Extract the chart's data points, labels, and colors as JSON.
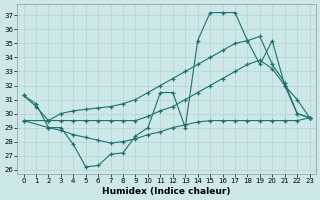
{
  "bg_color": "#cce8e8",
  "grid_color": "#b8d0d0",
  "line_color": "#1e7070",
  "xlim": [
    -0.5,
    23.5
  ],
  "ylim": [
    25.7,
    37.8
  ],
  "xticks": [
    0,
    1,
    2,
    3,
    4,
    5,
    6,
    7,
    8,
    9,
    10,
    11,
    12,
    13,
    14,
    15,
    16,
    17,
    18,
    19,
    20,
    21,
    22,
    23
  ],
  "yticks": [
    26,
    27,
    28,
    29,
    30,
    31,
    32,
    33,
    34,
    35,
    36,
    37
  ],
  "xlabel": "Humidex (Indice chaleur)",
  "lines": [
    {
      "x": [
        0,
        1,
        2,
        3,
        4,
        5,
        6,
        7,
        8,
        9,
        10,
        11,
        12,
        13,
        14,
        15,
        16,
        17,
        18,
        19,
        20,
        21,
        22,
        23
      ],
      "y": [
        31.3,
        30.7,
        29.0,
        29.0,
        27.8,
        26.2,
        26.3,
        27.1,
        27.2,
        28.4,
        29.0,
        31.5,
        31.5,
        29.0,
        35.2,
        37.2,
        37.2,
        37.2,
        35.2,
        33.5,
        35.2,
        32.0,
        31.0,
        29.7
      ]
    },
    {
      "x": [
        0,
        1,
        2,
        3,
        4,
        5,
        6,
        7,
        8,
        9,
        10,
        11,
        12,
        13,
        14,
        15,
        16,
        17,
        18,
        19,
        20,
        21,
        22,
        23
      ],
      "y": [
        31.3,
        30.5,
        29.5,
        30.0,
        30.2,
        30.3,
        30.4,
        30.5,
        30.7,
        31.0,
        31.5,
        32.0,
        32.5,
        33.0,
        33.5,
        34.0,
        34.5,
        35.0,
        35.2,
        35.5,
        33.5,
        32.2,
        30.0,
        29.7
      ]
    },
    {
      "x": [
        0,
        2,
        3,
        4,
        5,
        6,
        7,
        8,
        9,
        10,
        11,
        12,
        13,
        14,
        15,
        16,
        17,
        18,
        19,
        20,
        21,
        22,
        23
      ],
      "y": [
        29.5,
        29.0,
        28.8,
        28.5,
        28.3,
        28.1,
        27.9,
        28.0,
        28.2,
        28.5,
        28.7,
        29.0,
        29.2,
        29.4,
        29.5,
        29.5,
        29.5,
        29.5,
        29.5,
        29.5,
        29.5,
        29.5,
        29.7
      ]
    },
    {
      "x": [
        0,
        2,
        3,
        4,
        5,
        6,
        7,
        8,
        9,
        10,
        11,
        12,
        13,
        14,
        15,
        16,
        17,
        18,
        19,
        20,
        21,
        22,
        23
      ],
      "y": [
        29.5,
        29.5,
        29.5,
        29.5,
        29.5,
        29.5,
        29.5,
        29.5,
        29.5,
        29.8,
        30.2,
        30.5,
        31.0,
        31.5,
        32.0,
        32.5,
        33.0,
        33.5,
        33.8,
        33.2,
        32.0,
        30.0,
        29.7
      ]
    }
  ]
}
